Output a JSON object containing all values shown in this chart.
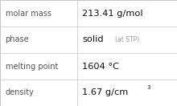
{
  "rows": [
    {
      "label": "molar mass",
      "value": "213.41 g/mol",
      "value_extra": null,
      "value_super": null
    },
    {
      "label": "phase",
      "value": "solid",
      "value_extra": "(at STP)",
      "value_super": null
    },
    {
      "label": "melting point",
      "value": "1604 °C",
      "value_extra": null,
      "value_super": null
    },
    {
      "label": "density",
      "value": "1.67 g/cm",
      "value_extra": null,
      "value_super": "3"
    }
  ],
  "bg_color": "#ffffff",
  "border_color": "#bbbbbb",
  "label_color": "#555555",
  "value_color": "#111111",
  "extra_color": "#999999",
  "divider_color": "#cccccc",
  "col_split": 0.435,
  "label_fontsize": 7.0,
  "value_fontsize": 8.2,
  "extra_fontsize": 5.5,
  "super_fontsize": 5.0
}
